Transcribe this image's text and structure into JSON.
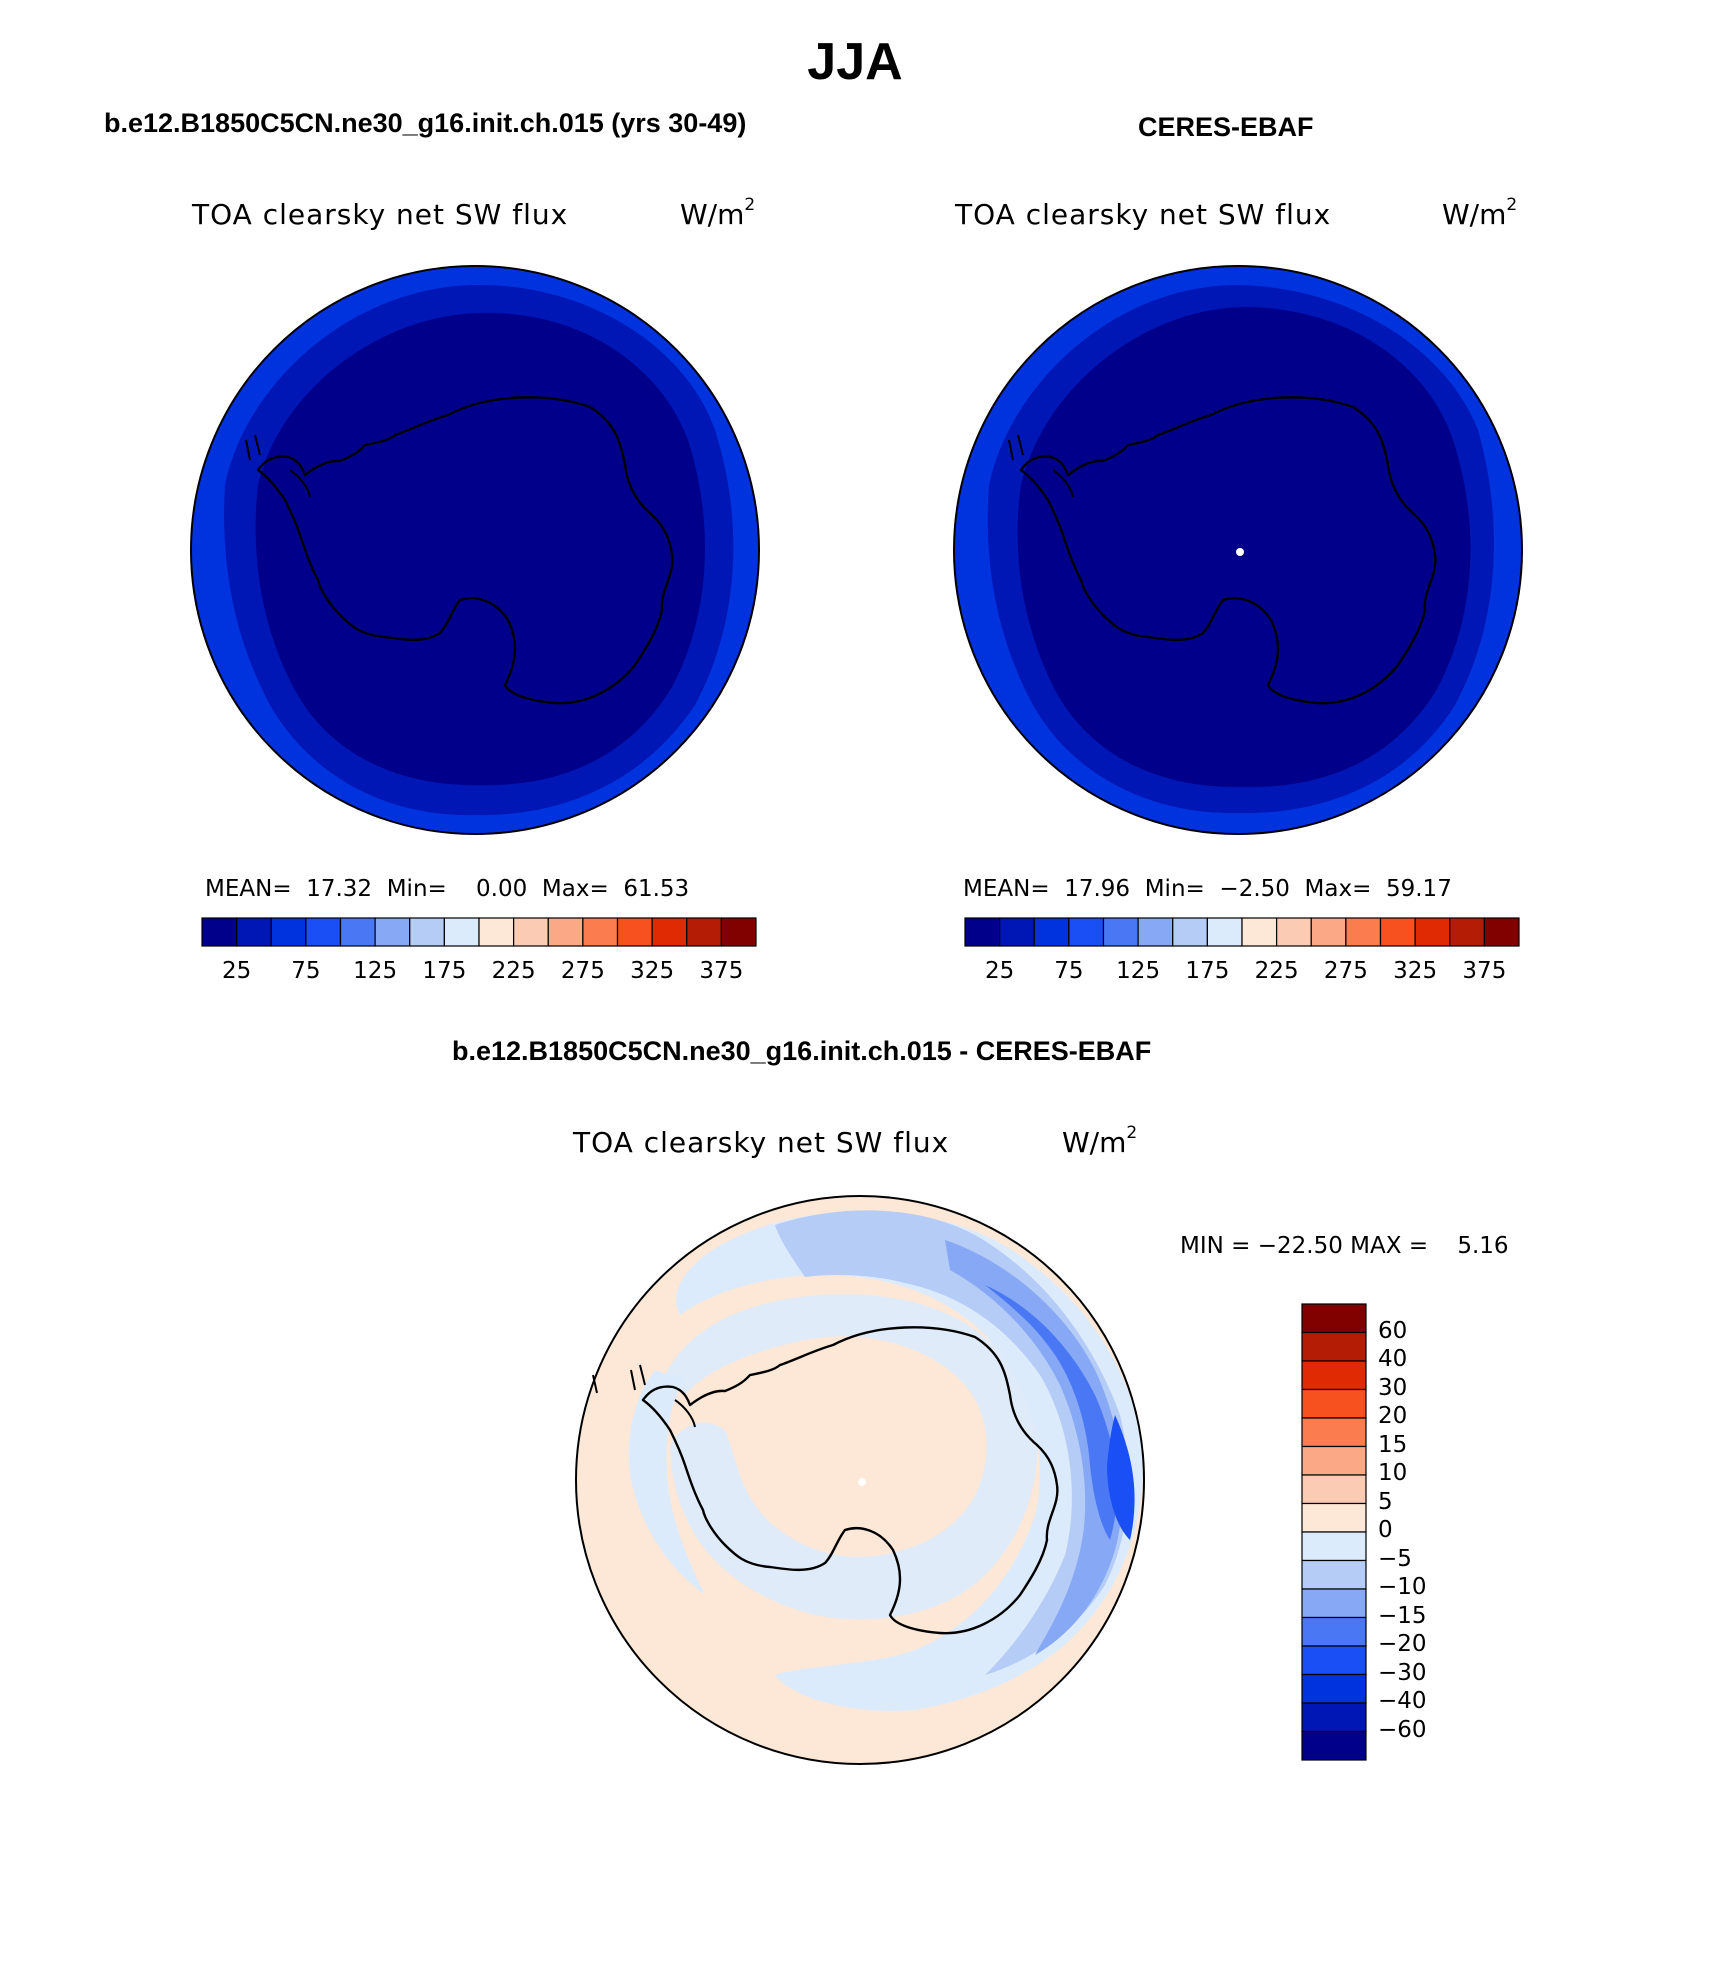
{
  "title": "JJA",
  "panels": [
    {
      "id": "model",
      "title": "b.e12.B1850C5CN.ne30_g16.init.ch.015 (yrs 30-49)",
      "variable": "TOA clearsky net SW flux",
      "units_base": "W/m",
      "units_exp": "2",
      "stats": {
        "mean_label": "MEAN=",
        "mean": "17.32",
        "min_label": "Min=",
        "min": "0.00",
        "max_label": "Max=",
        "max": "61.53"
      },
      "colorbar_labels": [
        "25",
        "75",
        "125",
        "175",
        "225",
        "275",
        "325",
        "375"
      ]
    },
    {
      "id": "obs",
      "title": "CERES-EBAF",
      "variable": "TOA clearsky net SW flux",
      "units_base": "W/m",
      "units_exp": "2",
      "stats": {
        "mean_label": "MEAN=",
        "mean": "17.96",
        "min_label": "Min=",
        "min": "−2.50",
        "max_label": "Max=",
        "max": "59.17"
      },
      "colorbar_labels": [
        "25",
        "75",
        "125",
        "175",
        "225",
        "275",
        "325",
        "375"
      ]
    },
    {
      "id": "diff",
      "title": "b.e12.B1850C5CN.ne30_g16.init.ch.015 - CERES-EBAF",
      "variable": "TOA clearsky net SW flux",
      "units_base": "W/m",
      "units_exp": "2",
      "stats": {
        "min_label": "MIN =",
        "min": "−22.50",
        "max_label": "MAX =",
        "max": "5.16"
      },
      "colorbar_labels": [
        "60",
        "40",
        "30",
        "20",
        "15",
        "10",
        "5",
        "0",
        "−5",
        "−10",
        "−15",
        "−20",
        "−30",
        "−40",
        "−60"
      ]
    }
  ],
  "colors": {
    "abs_scale": [
      "#00008a",
      "#0016b5",
      "#0033dd",
      "#1a4ff5",
      "#4a78f5",
      "#86a8f5",
      "#b5ccf7",
      "#dcebfc",
      "#fde7d6",
      "#fccbb4",
      "#fba887",
      "#fb7c4f",
      "#f75120",
      "#e02a04",
      "#b41c06",
      "#810000"
    ],
    "diff_scale": [
      "#810000",
      "#b41c06",
      "#e02a04",
      "#f75120",
      "#fb7c4f",
      "#fba887",
      "#fccbb4",
      "#fde7d6",
      "#dcebfc",
      "#b5ccf7",
      "#86a8f5",
      "#4a78f5",
      "#1a4ff5",
      "#0033dd",
      "#0016b5",
      "#00008a"
    ]
  }
}
